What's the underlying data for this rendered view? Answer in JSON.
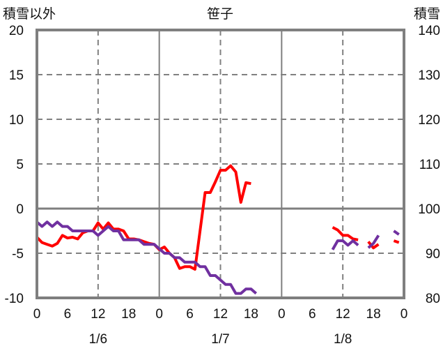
{
  "chart_data": {
    "type": "line",
    "title": "笹子",
    "ylabel_left": "積雪以外",
    "ylabel_right": "積雪",
    "ylim_left": [
      -10,
      20
    ],
    "ylim_right": [
      80,
      140
    ],
    "yticks_left": [
      "20",
      "15",
      "10",
      "5",
      "0",
      "-5",
      "-10"
    ],
    "yticks_right": [
      "140",
      "130",
      "120",
      "110",
      "100",
      "90",
      "80"
    ],
    "xticks": [
      "0",
      "6",
      "12",
      "18",
      "0",
      "6",
      "12",
      "18",
      "0",
      "6",
      "12",
      "18",
      "0"
    ],
    "date_labels": [
      "1/6",
      "1/7",
      "1/8"
    ],
    "grid": true,
    "series": [
      {
        "name": "積雪以外",
        "axis": "left",
        "color": "#ff0000",
        "values": [
          -3.2,
          -3.8,
          -4,
          -4.2,
          -3.9,
          -3,
          -3.3,
          -3.2,
          -3.4,
          -2.7,
          -2.5,
          -2.5,
          -1.6,
          -2.3,
          -1.6,
          -2.3,
          -2.3,
          -2.5,
          -3.4,
          -3.4,
          -3.5,
          -3.7,
          -3.9,
          -4,
          -4.6,
          -4.3,
          -5,
          -5.5,
          -6.7,
          -6.5,
          -6.5,
          -6.8,
          -2.5,
          1.8,
          1.8,
          3.0,
          4.3,
          4.3,
          4.8,
          4.1,
          0.7,
          2.9,
          2.8,
          null,
          null,
          null,
          null,
          null,
          null,
          null,
          null,
          null,
          null,
          null,
          null,
          null,
          null,
          null,
          -2.1,
          -2.4,
          -3,
          -3,
          -3.4,
          -3.5,
          null,
          -3.7,
          -4.4,
          -4.0,
          null,
          null,
          -3.6,
          -3.8,
          null
        ]
      },
      {
        "name": "積雪",
        "axis": "right",
        "color": "#7030a0",
        "values": [
          97,
          96,
          97,
          96,
          97,
          96,
          96,
          95,
          95,
          95,
          95,
          95,
          94,
          95,
          96,
          95,
          95,
          93,
          93,
          93,
          93,
          92,
          92,
          92,
          91,
          90,
          90,
          89,
          89,
          88,
          88,
          88,
          87,
          87,
          85,
          85,
          84,
          83,
          83,
          81,
          81,
          82,
          82,
          81,
          null,
          null,
          null,
          null,
          null,
          null,
          null,
          null,
          null,
          null,
          null,
          null,
          null,
          null,
          90.8,
          92.8,
          92.8,
          91.8,
          92.8,
          91.8,
          null,
          91.2,
          92.2,
          94,
          null,
          null,
          95,
          94.2,
          null
        ]
      }
    ]
  }
}
